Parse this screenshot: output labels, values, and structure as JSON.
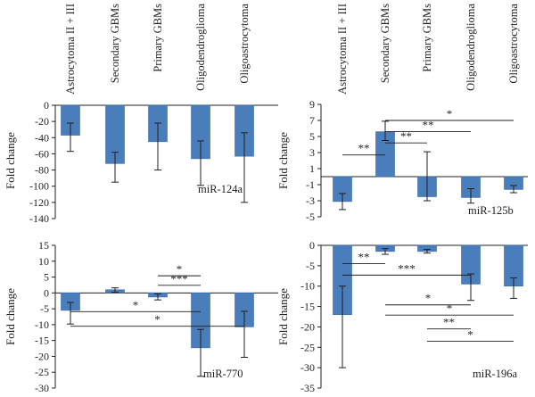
{
  "chart_data": [
    {
      "id": "mir124a",
      "type": "bar",
      "title": "miR-124a",
      "ylabel": "Fold change",
      "categories": [
        "Astrocytoma II + III",
        "Secondary GBMs",
        "Primary GBMs",
        "Oligodendroglioma",
        "Oligoastrocytoma"
      ],
      "values": [
        -37,
        -72,
        -45,
        -66,
        -63
      ],
      "error_low": [
        -57,
        -95,
        -80,
        -99,
        -120
      ],
      "error_high": [
        -22,
        -58,
        -22,
        -44,
        -34
      ],
      "ylim": [
        -140,
        0
      ],
      "yticks": [
        0,
        -20,
        -40,
        -60,
        -80,
        -100,
        -120,
        -140
      ],
      "show_categories": true,
      "significance": []
    },
    {
      "id": "mir125b",
      "type": "bar",
      "title": "miR-125b",
      "ylabel": "Fold change",
      "categories": [
        "Astrocytoma II + III",
        "Secondary GBMs",
        "Primary GBMs",
        "Oligodendroglioma",
        "Oligoastrocytoma"
      ],
      "values": [
        -3.1,
        5.6,
        -2.5,
        -2.6,
        -1.6
      ],
      "error_low": [
        -4.1,
        4.5,
        -3.0,
        -3.3,
        -2.0
      ],
      "error_high": [
        -2.1,
        6.9,
        3.1,
        -1.5,
        -1.1
      ],
      "ylim": [
        -5,
        9
      ],
      "yticks": [
        9,
        7,
        5,
        3,
        1,
        -1,
        -3,
        -5
      ],
      "show_categories": true,
      "significance": [
        {
          "from": 0,
          "to": 1,
          "y": 2.7,
          "label": "**"
        },
        {
          "from": 1,
          "to": 2,
          "y": 4.2,
          "label": "**"
        },
        {
          "from": 1,
          "to": 3,
          "y": 5.6,
          "label": "**"
        },
        {
          "from": 1,
          "to": 4,
          "y": 7.0,
          "label": "*"
        }
      ]
    },
    {
      "id": "mir770",
      "type": "bar",
      "title": "miR-770",
      "ylabel": "Fold change",
      "categories": [
        "Astrocytoma II + III",
        "Secondary GBMs",
        "Primary GBMs",
        "Oligodendroglioma",
        "Oligoastrocytoma"
      ],
      "values": [
        -5.5,
        1.0,
        -1.3,
        -17.3,
        -10.7
      ],
      "error_low": [
        -9.8,
        0.2,
        -2.2,
        -26.3,
        -20.3
      ],
      "error_high": [
        -3.0,
        1.6,
        -0.3,
        -11.5,
        -5.8
      ],
      "ylim": [
        -30,
        15
      ],
      "yticks": [
        15,
        10,
        5,
        0,
        -5,
        -10,
        -15,
        -20,
        -25,
        -30
      ],
      "show_categories": false,
      "significance": [
        {
          "from": 2,
          "to": 3,
          "y": 5.4,
          "label": "*"
        },
        {
          "from": 2,
          "to": 3,
          "y": 2.4,
          "label": "***"
        },
        {
          "from": 0,
          "to": 3,
          "y": -5.9,
          "label": "*"
        },
        {
          "from": 0,
          "to": 4,
          "y": -10.5,
          "label": "*"
        }
      ]
    },
    {
      "id": "mir196a",
      "type": "bar",
      "title": "miR-196a",
      "ylabel": "Fold change",
      "categories": [
        "Astrocytoma II + III",
        "Secondary GBMs",
        "Primary GBMs",
        "Oligodendroglioma",
        "Oligoastrocytoma"
      ],
      "values": [
        -17,
        -1.5,
        -1.5,
        -9.5,
        -10
      ],
      "error_low": [
        -30,
        -2.2,
        -1.9,
        -13.5,
        -13
      ],
      "error_high": [
        -10,
        -0.8,
        -1.0,
        -7.0,
        -8.0
      ],
      "ylim": [
        -35,
        0
      ],
      "yticks": [
        0,
        -5,
        -10,
        -15,
        -20,
        -25,
        -30,
        -35
      ],
      "show_categories": false,
      "significance": [
        {
          "from": 0,
          "to": 1,
          "y": -4.5,
          "label": "**"
        },
        {
          "from": 0,
          "to": 3,
          "y": -7.3,
          "label": "***"
        },
        {
          "from": 1,
          "to": 3,
          "y": -14.6,
          "label": "*"
        },
        {
          "from": 1,
          "to": 4,
          "y": -17.1,
          "label": "*"
        },
        {
          "from": 2,
          "to": 3,
          "y": -20.5,
          "label": "**"
        },
        {
          "from": 2,
          "to": 4,
          "y": -23.5,
          "label": "*"
        }
      ]
    }
  ],
  "colors": {
    "bar": "#4a7ebb",
    "bar_edge": "#3a6aa6",
    "axis": "#231f20",
    "text": "#231f20"
  }
}
